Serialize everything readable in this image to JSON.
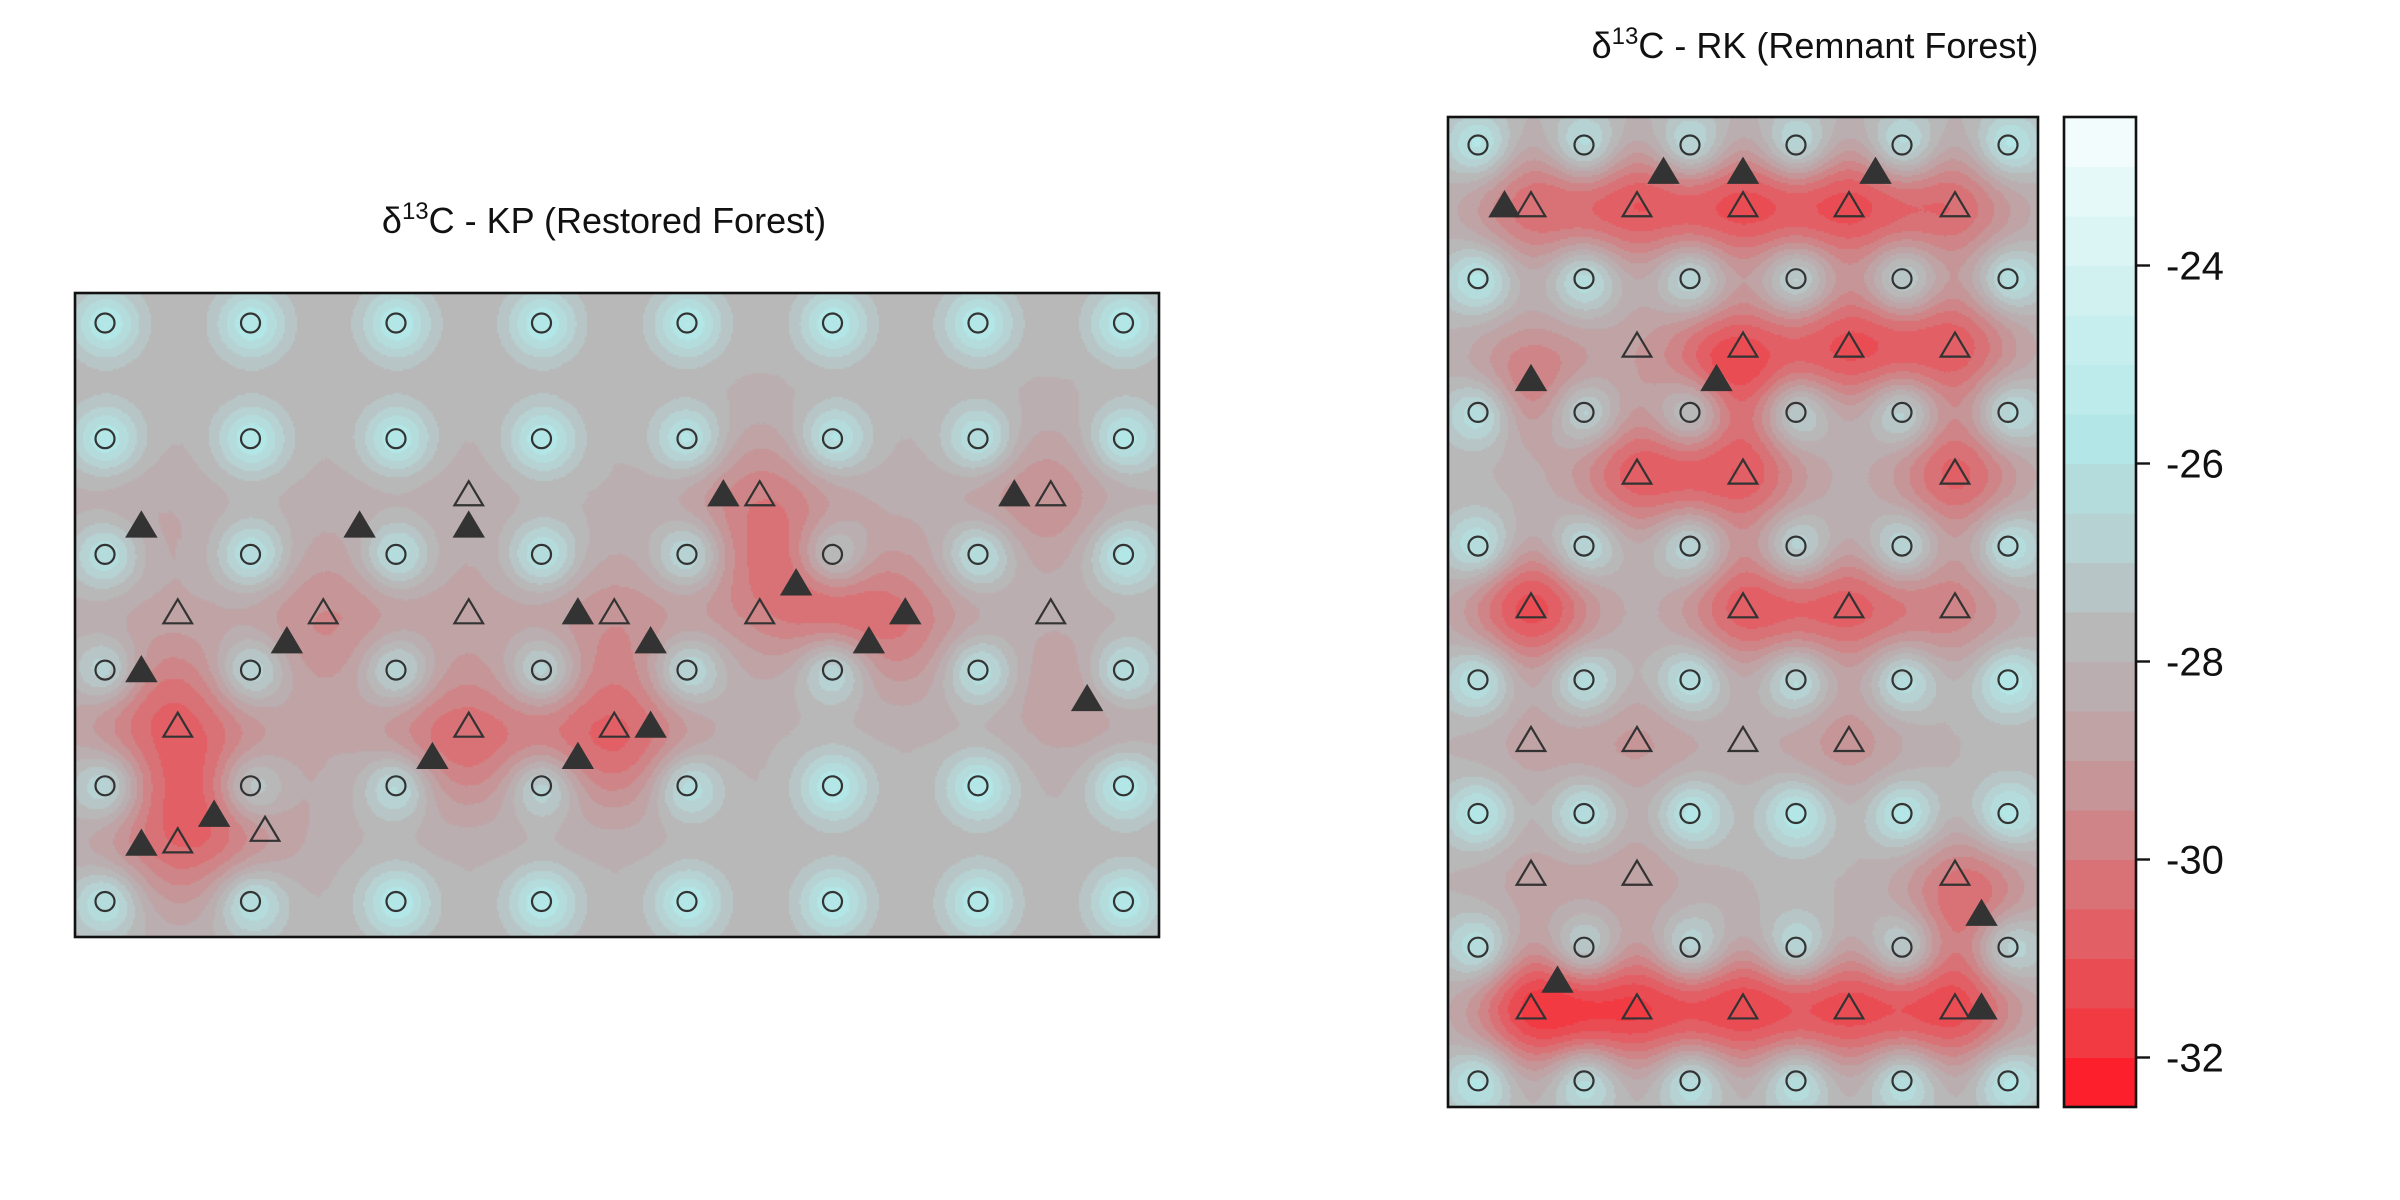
{
  "chart_data": [
    {
      "type": "heatmap",
      "title": "δ13C - KP (Restored Forest)",
      "title_parts": {
        "symbol": "δ",
        "sup": "13",
        "rest": "C - KP (Restored Forest)"
      },
      "grid_columns": 8,
      "grid_rows": 6,
      "circle_points": [
        [
          0,
          0
        ],
        [
          1,
          0
        ],
        [
          2,
          0
        ],
        [
          3,
          0
        ],
        [
          4,
          0
        ],
        [
          5,
          0
        ],
        [
          6,
          0
        ],
        [
          7,
          0
        ],
        [
          0,
          1
        ],
        [
          1,
          1
        ],
        [
          2,
          1
        ],
        [
          3,
          1
        ],
        [
          4,
          1
        ],
        [
          5,
          1
        ],
        [
          6,
          1
        ],
        [
          7,
          1
        ],
        [
          0,
          2
        ],
        [
          1,
          2
        ],
        [
          2,
          2
        ],
        [
          3,
          2
        ],
        [
          4,
          2
        ],
        [
          5,
          2
        ],
        [
          6,
          2
        ],
        [
          7,
          2
        ],
        [
          0,
          3
        ],
        [
          1,
          3
        ],
        [
          2,
          3
        ],
        [
          3,
          3
        ],
        [
          4,
          3
        ],
        [
          5,
          3
        ],
        [
          6,
          3
        ],
        [
          7,
          3
        ],
        [
          0,
          4
        ],
        [
          1,
          4
        ],
        [
          2,
          4
        ],
        [
          3,
          4
        ],
        [
          4,
          4
        ],
        [
          5,
          4
        ],
        [
          6,
          4
        ],
        [
          7,
          4
        ],
        [
          0,
          5
        ],
        [
          1,
          5
        ],
        [
          2,
          5
        ],
        [
          3,
          5
        ],
        [
          4,
          5
        ],
        [
          5,
          5
        ],
        [
          6,
          5
        ],
        [
          7,
          5
        ]
      ],
      "open_triangles": [
        [
          2.5,
          1.48
        ],
        [
          4.5,
          1.48
        ],
        [
          6.5,
          1.48
        ],
        [
          0.5,
          2.5
        ],
        [
          1.5,
          2.5
        ],
        [
          2.5,
          2.5
        ],
        [
          3.5,
          2.5
        ],
        [
          4.5,
          2.5
        ],
        [
          6.5,
          2.5
        ],
        [
          0.5,
          3.48
        ],
        [
          2.5,
          3.48
        ],
        [
          3.5,
          3.48
        ],
        [
          0.5,
          4.48
        ],
        [
          1.1,
          4.38
        ]
      ],
      "filled_triangles": [
        [
          0.25,
          1.75
        ],
        [
          1.75,
          1.75
        ],
        [
          2.5,
          1.75
        ],
        [
          4.25,
          1.48
        ],
        [
          6.25,
          1.48
        ],
        [
          1.25,
          2.75
        ],
        [
          3.25,
          2.5
        ],
        [
          3.75,
          2.75
        ],
        [
          4.75,
          2.25
        ],
        [
          5.25,
          2.75
        ],
        [
          5.5,
          2.5
        ],
        [
          6.75,
          3.25
        ],
        [
          0.25,
          3.0
        ],
        [
          2.25,
          3.75
        ],
        [
          3.25,
          3.75
        ],
        [
          3.75,
          3.48
        ],
        [
          0.75,
          4.25
        ],
        [
          0.25,
          4.5
        ]
      ],
      "hotspots": [
        [
          0.5,
          3.5,
          -29.6
        ],
        [
          0.5,
          4.5,
          -29.8
        ],
        [
          0.25,
          3.1,
          -29.0
        ],
        [
          0.25,
          1.8,
          -28.6
        ],
        [
          0.8,
          4.1,
          -29.0
        ],
        [
          1.5,
          2.6,
          -29.4
        ],
        [
          1.7,
          1.8,
          -28.2
        ],
        [
          2.5,
          1.6,
          -28.2
        ],
        [
          2.5,
          2.5,
          -28.4
        ],
        [
          2.4,
          3.6,
          -30.2
        ],
        [
          3.5,
          3.6,
          -30.4
        ],
        [
          3.5,
          2.6,
          -29.2
        ],
        [
          4.5,
          1.5,
          -29.6
        ],
        [
          4.7,
          2.3,
          -29.8
        ],
        [
          5.4,
          2.6,
          -29.8
        ],
        [
          6.4,
          1.5,
          -29.4
        ],
        [
          6.7,
          3.2,
          -29.0
        ],
        [
          6.5,
          2.5,
          -27.9
        ]
      ],
      "colorscale_range": [
        -32.8,
        -22.5
      ]
    },
    {
      "type": "heatmap",
      "title": "δ13C - RK (Remnant Forest)",
      "title_parts": {
        "symbol": "δ",
        "sup": "13",
        "rest": "C - RK (Remnant Forest)"
      },
      "grid_columns": 6,
      "grid_rows": 8,
      "circle_points": [
        [
          0,
          0
        ],
        [
          1,
          0
        ],
        [
          2,
          0
        ],
        [
          3,
          0
        ],
        [
          4,
          0
        ],
        [
          5,
          0
        ],
        [
          0,
          1
        ],
        [
          1,
          1
        ],
        [
          2,
          1
        ],
        [
          3,
          1
        ],
        [
          4,
          1
        ],
        [
          5,
          1
        ],
        [
          0,
          2
        ],
        [
          1,
          2
        ],
        [
          2,
          2
        ],
        [
          3,
          2
        ],
        [
          4,
          2
        ],
        [
          5,
          2
        ],
        [
          0,
          3
        ],
        [
          1,
          3
        ],
        [
          2,
          3
        ],
        [
          3,
          3
        ],
        [
          4,
          3
        ],
        [
          5,
          3
        ],
        [
          0,
          4
        ],
        [
          1,
          4
        ],
        [
          2,
          4
        ],
        [
          3,
          4
        ],
        [
          4,
          4
        ],
        [
          5,
          4
        ],
        [
          0,
          5
        ],
        [
          1,
          5
        ],
        [
          2,
          5
        ],
        [
          3,
          5
        ],
        [
          4,
          5
        ],
        [
          5,
          5
        ],
        [
          0,
          6
        ],
        [
          1,
          6
        ],
        [
          2,
          6
        ],
        [
          3,
          6
        ],
        [
          4,
          6
        ],
        [
          5,
          6
        ],
        [
          0,
          7
        ],
        [
          1,
          7
        ],
        [
          2,
          7
        ],
        [
          3,
          7
        ],
        [
          4,
          7
        ],
        [
          5,
          7
        ]
      ],
      "open_triangles": [
        [
          0.5,
          0.45
        ],
        [
          1.5,
          0.45
        ],
        [
          2.5,
          0.45
        ],
        [
          3.5,
          0.45
        ],
        [
          4.5,
          0.45
        ],
        [
          1.5,
          1.5
        ],
        [
          2.5,
          1.5
        ],
        [
          3.5,
          1.5
        ],
        [
          4.5,
          1.5
        ],
        [
          1.5,
          2.45
        ],
        [
          2.5,
          2.45
        ],
        [
          4.5,
          2.45
        ],
        [
          0.5,
          3.45
        ],
        [
          2.5,
          3.45
        ],
        [
          3.5,
          3.45
        ],
        [
          4.5,
          3.45
        ],
        [
          0.5,
          4.45
        ],
        [
          1.5,
          4.45
        ],
        [
          2.5,
          4.45
        ],
        [
          3.5,
          4.45
        ],
        [
          0.5,
          5.45
        ],
        [
          1.5,
          5.45
        ],
        [
          4.5,
          5.45
        ],
        [
          0.5,
          6.45
        ],
        [
          1.5,
          6.45
        ],
        [
          2.5,
          6.45
        ],
        [
          3.5,
          6.45
        ],
        [
          4.5,
          6.45
        ]
      ],
      "filled_triangles": [
        [
          0.25,
          0.45
        ],
        [
          1.75,
          0.2
        ],
        [
          2.5,
          0.2
        ],
        [
          3.75,
          0.2
        ],
        [
          2.25,
          1.75
        ],
        [
          0.5,
          1.75
        ],
        [
          4.75,
          5.75
        ],
        [
          0.75,
          6.25
        ],
        [
          4.75,
          6.45
        ]
      ],
      "hotspots": [
        [
          0.5,
          0.45,
          -30.2
        ],
        [
          1.5,
          0.45,
          -30.6
        ],
        [
          2.5,
          0.45,
          -30.8
        ],
        [
          3.5,
          0.45,
          -30.8
        ],
        [
          4.5,
          0.45,
          -30.2
        ],
        [
          1.5,
          1.5,
          -28.4
        ],
        [
          2.4,
          1.6,
          -31.2
        ],
        [
          3.5,
          1.5,
          -30.8
        ],
        [
          4.5,
          1.5,
          -30.6
        ],
        [
          0.5,
          1.75,
          -30.0
        ],
        [
          1.5,
          2.45,
          -30.6
        ],
        [
          2.5,
          2.45,
          -30.6
        ],
        [
          4.5,
          2.45,
          -30.6
        ],
        [
          0.5,
          3.45,
          -31.2
        ],
        [
          2.5,
          3.45,
          -30.6
        ],
        [
          3.5,
          3.45,
          -30.4
        ],
        [
          4.5,
          3.45,
          -29.6
        ],
        [
          0.5,
          4.45,
          -28.6
        ],
        [
          1.5,
          4.45,
          -29.0
        ],
        [
          2.5,
          4.45,
          -28.2
        ],
        [
          3.5,
          4.45,
          -29.2
        ],
        [
          0.5,
          5.45,
          -28.6
        ],
        [
          1.5,
          5.45,
          -28.8
        ],
        [
          4.6,
          5.6,
          -30.4
        ],
        [
          0.55,
          6.45,
          -31.6
        ],
        [
          1.5,
          6.45,
          -31.0
        ],
        [
          2.5,
          6.45,
          -31.0
        ],
        [
          3.5,
          6.45,
          -30.8
        ],
        [
          4.5,
          6.45,
          -31.0
        ]
      ],
      "colorscale_range": [
        -32.8,
        -22.5
      ]
    }
  ],
  "colorbar": {
    "range": [
      -32.5,
      -22.5
    ],
    "ticks": [
      {
        "value": -24,
        "label": "-24"
      },
      {
        "value": -26,
        "label": "-26"
      },
      {
        "value": -28,
        "label": "-28"
      },
      {
        "value": -30,
        "label": "-30"
      },
      {
        "value": -32,
        "label": "-32"
      }
    ],
    "bands": [
      {
        "lo": -32.5,
        "hi": -32.0,
        "color": "#fe1f2d"
      },
      {
        "lo": -32.0,
        "hi": -31.5,
        "color": "#f23a43"
      },
      {
        "lo": -31.5,
        "hi": -31.0,
        "color": "#ea4c54"
      },
      {
        "lo": -31.0,
        "hi": -30.5,
        "color": "#e15f65"
      },
      {
        "lo": -30.5,
        "hi": -30.0,
        "color": "#d87276"
      },
      {
        "lo": -30.0,
        "hi": -29.5,
        "color": "#cf8587"
      },
      {
        "lo": -29.5,
        "hi": -29.0,
        "color": "#c69597"
      },
      {
        "lo": -29.0,
        "hi": -28.5,
        "color": "#bfa3a5"
      },
      {
        "lo": -28.5,
        "hi": -28.0,
        "color": "#baaeb0"
      },
      {
        "lo": -28.0,
        "hi": -27.5,
        "color": "#b9b8b9"
      },
      {
        "lo": -27.5,
        "hi": -27.0,
        "color": "#b8c5c6"
      },
      {
        "lo": -27.0,
        "hi": -26.5,
        "color": "#b6d2d3"
      },
      {
        "lo": -26.5,
        "hi": -26.0,
        "color": "#b5dcdc"
      },
      {
        "lo": -26.0,
        "hi": -25.5,
        "color": "#b3e6e6"
      },
      {
        "lo": -25.5,
        "hi": -25.0,
        "color": "#bdeaea"
      },
      {
        "lo": -25.0,
        "hi": -24.5,
        "color": "#c7eeee"
      },
      {
        "lo": -24.5,
        "hi": -24.0,
        "color": "#d1f1f1"
      },
      {
        "lo": -24.0,
        "hi": -23.5,
        "color": "#dbf5f5"
      },
      {
        "lo": -23.5,
        "hi": -23.0,
        "color": "#e6f9f9"
      },
      {
        "lo": -23.0,
        "hi": -22.5,
        "color": "#f2fcfc"
      }
    ]
  },
  "colors": {
    "background_level": -27.9,
    "marker_stroke": "#333333",
    "marker_fill": "#333333",
    "frame": "#111111"
  }
}
